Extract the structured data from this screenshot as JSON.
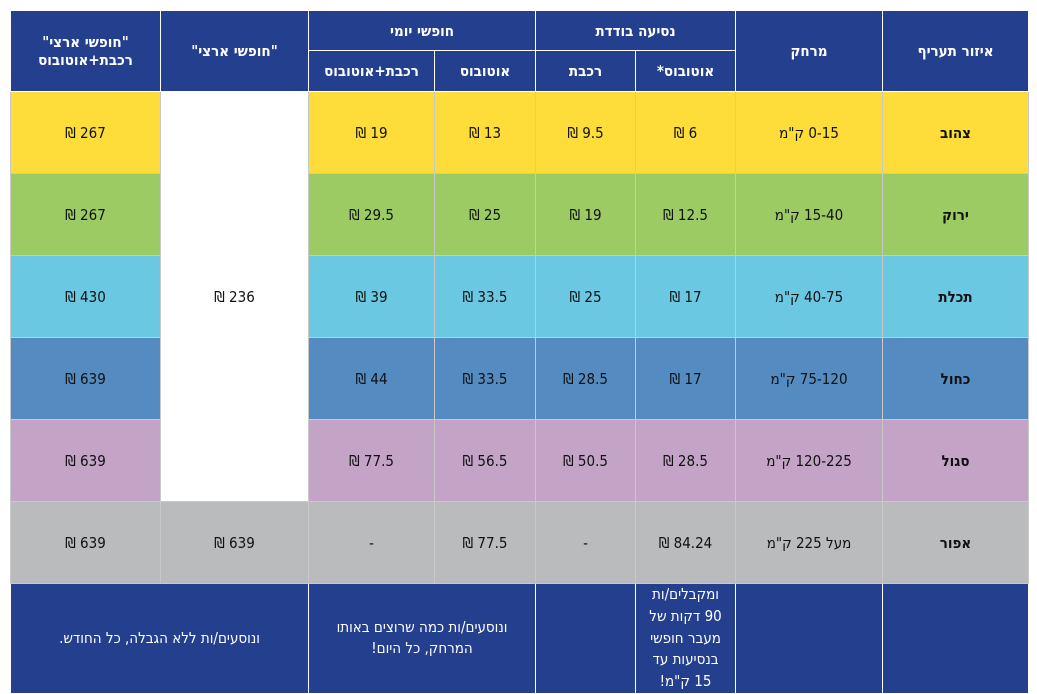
{
  "header": {
    "zone": "איזור תעריף",
    "distance": "מרחק",
    "single": "נסיעה בודדת",
    "daily": "חופשי יומי",
    "national": "\"חופשי ארצי\"",
    "national_train_bus": "\"חופשי ארצי\" רכבת+אוטובוס",
    "bus_star": "אוטובוס*",
    "train": "רכבת",
    "bus": "אוטובוס",
    "train_bus": "רכבת+אוטובוס"
  },
  "colors": {
    "header": "#253f8f",
    "yellow": "#fedd3a",
    "green": "#9ccb64",
    "cyan": "#6ac8e2",
    "blue": "#548cc1",
    "purple": "#c3a4c7",
    "grey": "#babbbd"
  },
  "national_shared": "236 ₪",
  "rows": [
    {
      "zone": "צהוב",
      "distance": "0-15 ק\"מ",
      "single_bus": "6 ₪",
      "single_train": "9.5 ₪",
      "daily_bus": "13 ₪",
      "daily_train_bus": "19 ₪",
      "national_train_bus": "267 ₪"
    },
    {
      "zone": "ירוק",
      "distance": "15-40 ק\"מ",
      "single_bus": "12.5 ₪",
      "single_train": "19 ₪",
      "daily_bus": "25 ₪",
      "daily_train_bus": "29.5 ₪",
      "national_train_bus": "267 ₪"
    },
    {
      "zone": "תכלת",
      "distance": "40-75 ק\"מ",
      "single_bus": "17 ₪",
      "single_train": "25 ₪",
      "daily_bus": "33.5 ₪",
      "daily_train_bus": "39 ₪",
      "national_train_bus": "430 ₪"
    },
    {
      "zone": "כחול",
      "distance": "75-120 ק\"מ",
      "single_bus": "17 ₪",
      "single_train": "28.5 ₪",
      "daily_bus": "33.5 ₪",
      "daily_train_bus": "44 ₪",
      "national_train_bus": "639 ₪"
    },
    {
      "zone": "סגול",
      "distance": "120-225 ק\"מ",
      "single_bus": "28.5 ₪",
      "single_train": "50.5 ₪",
      "daily_bus": "56.5 ₪",
      "daily_train_bus": "77.5 ₪",
      "national_train_bus": "639 ₪"
    },
    {
      "zone": "אפור",
      "distance": "מעל 225 ק\"מ",
      "single_bus": "84.24 ₪",
      "single_train": "-",
      "daily_bus": "77.5 ₪",
      "daily_train_bus": "-",
      "national": "639 ₪",
      "national_train_bus": "639 ₪"
    }
  ],
  "footer": {
    "single_bus": "ומקבלים/ות 90 דקות של מעבר חופשי בנסיעות עד 15 ק\"מ!",
    "daily": "ונוסעים/ות כמה שרוצים באותו המרחק, כל היום!",
    "national": "ונוסעים/ות ללא הגבלה, כל החודש."
  }
}
